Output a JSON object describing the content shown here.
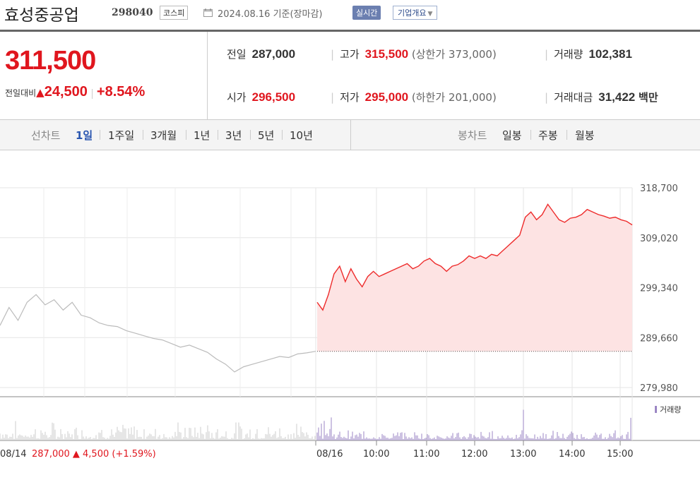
{
  "header": {
    "company": "효성중공업",
    "code": "298040",
    "market": "코스피",
    "date": "2024.08.16 기준(장마감)",
    "realtime": "실시간",
    "corp_info": "기업개요"
  },
  "quote": {
    "price": "311,500",
    "diff_label": "전일대비",
    "diff_arrow": "▲",
    "diff": "24,500",
    "rate": "+8.54%"
  },
  "stats": {
    "prev_label": "전일",
    "prev": "287,000",
    "high_label": "고가",
    "high": "315,500",
    "upper_limit": "(상한가 373,000)",
    "volume_label": "거래량",
    "volume": "102,381",
    "open_label": "시가",
    "open": "296,500",
    "low_label": "저가",
    "low": "295,000",
    "lower_limit": "(하한가 201,000)",
    "amount_label": "거래대금",
    "amount": "31,422",
    "amount_unit": "백만"
  },
  "tabs": {
    "line_label": "선차트",
    "periods": [
      "1일",
      "1주일",
      "3개월",
      "1년",
      "3년",
      "5년",
      "10년"
    ],
    "candle_label": "봉차트",
    "candles": [
      "일봉",
      "주봉",
      "월봉"
    ],
    "active": "1일"
  },
  "chart_data": {
    "type": "line",
    "y_ticks": [
      "318,700",
      "309,020",
      "299,340",
      "289,660",
      "279,980"
    ],
    "ylim": [
      279980,
      318700
    ],
    "x_ticks": [
      "08/16",
      "10:00",
      "11:00",
      "12:00",
      "13:00",
      "14:00",
      "15:00"
    ],
    "prev_day_label": "08/14",
    "prev_day_info": "287,000 ▲ 4,500 (+1.59%)",
    "prev_close": 287000,
    "volume_legend": "거래량",
    "colors": {
      "today": "#ee2b2b",
      "fill": "#fde3e3",
      "prev": "#bbbbbb",
      "volume": "#9b86c4",
      "prev_volume": "#cccccc"
    },
    "prev_series": [
      292000,
      295500,
      293000,
      296500,
      298000,
      296000,
      297000,
      295000,
      296500,
      294000,
      293500,
      292500,
      292000,
      291800,
      291000,
      290500,
      290000,
      289500,
      289200,
      288500,
      287800,
      288200,
      287500,
      286800,
      285500,
      284500,
      283000,
      284000,
      284500,
      285000,
      285500,
      286000,
      285800,
      286500,
      286700,
      287000
    ],
    "today_series": [
      296500,
      295000,
      298000,
      302000,
      303500,
      300500,
      303000,
      301000,
      299500,
      301500,
      302500,
      301500,
      302000,
      302500,
      303000,
      303500,
      304000,
      303000,
      303500,
      304500,
      305000,
      304000,
      303500,
      302500,
      303500,
      303800,
      304500,
      305500,
      305000,
      305500,
      305000,
      305800,
      305500,
      306500,
      307500,
      308500,
      309500,
      313000,
      314000,
      312500,
      313500,
      315500,
      314000,
      312500,
      312000,
      312800,
      313000,
      313500,
      314500,
      314000,
      313500,
      313200,
      312800,
      313000,
      312500,
      312200,
      311500
    ]
  }
}
